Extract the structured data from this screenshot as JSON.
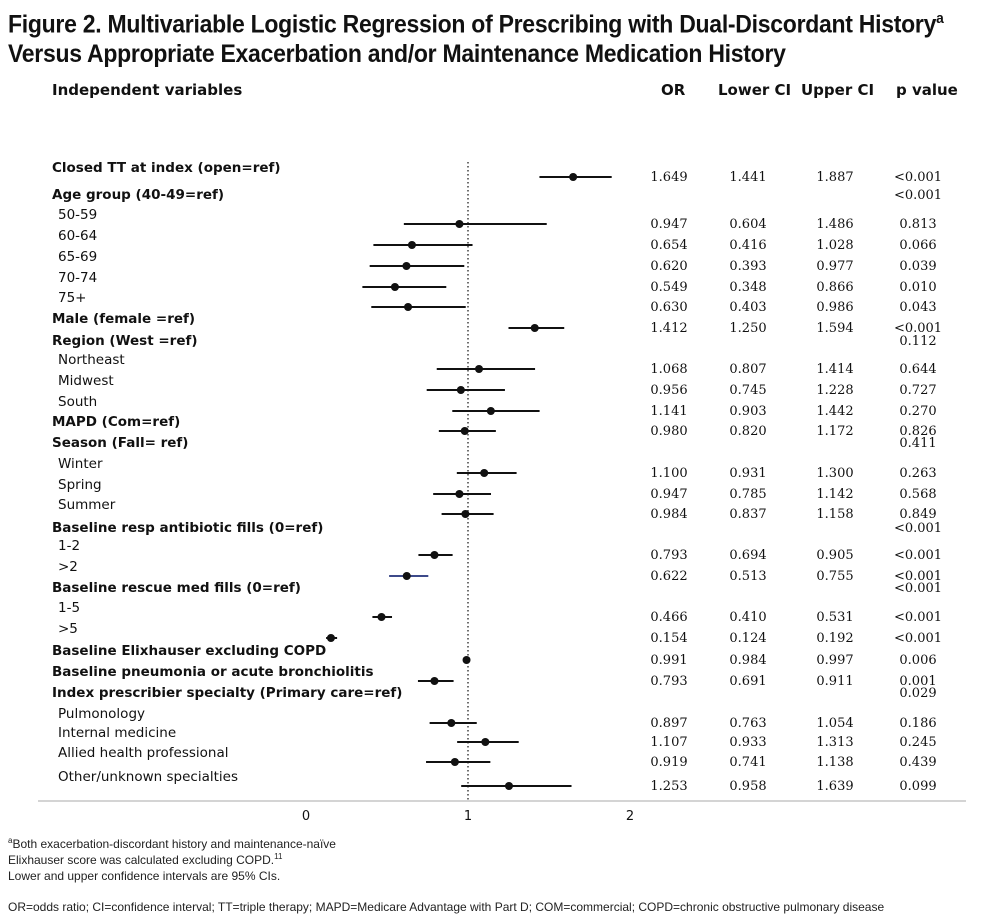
{
  "title": {
    "line1": "Figure 2. Multivariable Logistic Regression of Prescribing with Dual-Discordant History",
    "line1_sup": "a",
    "line2": "Versus Appropriate Exacerbation and/or Maintenance Medication History"
  },
  "headers": {
    "variables": "Independent variables",
    "or": "OR",
    "lower": "Lower CI",
    "upper": "Upper CI",
    "p": "p value"
  },
  "chart_data": {
    "type": "forest",
    "xlim": [
      0,
      2
    ],
    "ticks": [
      "0",
      "1",
      "2"
    ],
    "reference_line": 1,
    "rows": [
      {
        "label": "Closed TT at index (open=ref)",
        "bold": true,
        "or": 1.649,
        "lower": 1.441,
        "upper": 1.887,
        "or_text": "1.649",
        "lower_text": "1.441",
        "upper_text": "1.887",
        "p": "<0.001"
      },
      {
        "label": "Age  group (40-49=ref)",
        "bold": true,
        "p": "<0.001"
      },
      {
        "label": "50-59",
        "or": 0.947,
        "lower": 0.604,
        "upper": 1.486,
        "or_text": "0.947",
        "lower_text": "0.604",
        "upper_text": "1.486",
        "p": "0.813"
      },
      {
        "label": "60-64",
        "or": 0.654,
        "lower": 0.416,
        "upper": 1.028,
        "or_text": "0.654",
        "lower_text": "0.416",
        "upper_text": "1.028",
        "p": "0.066"
      },
      {
        "label": "65-69",
        "or": 0.62,
        "lower": 0.393,
        "upper": 0.977,
        "or_text": "0.620",
        "lower_text": "0.393",
        "upper_text": "0.977",
        "p": "0.039"
      },
      {
        "label": "70-74",
        "or": 0.549,
        "lower": 0.348,
        "upper": 0.866,
        "or_text": "0.549",
        "lower_text": "0.348",
        "upper_text": "0.866",
        "p": "0.010"
      },
      {
        "label": "75+",
        "or": 0.63,
        "lower": 0.403,
        "upper": 0.986,
        "or_text": "0.630",
        "lower_text": "0.403",
        "upper_text": "0.986",
        "p": "0.043"
      },
      {
        "label": "Male (female =ref)",
        "bold": true,
        "or": 1.412,
        "lower": 1.25,
        "upper": 1.594,
        "or_text": "1.412",
        "lower_text": "1.250",
        "upper_text": "1.594",
        "p": "<0.001"
      },
      {
        "label": "Region (West =ref)",
        "bold": true,
        "p": "0.112"
      },
      {
        "label": "Northeast",
        "or": 1.068,
        "lower": 0.807,
        "upper": 1.414,
        "or_text": "1.068",
        "lower_text": "0.807",
        "upper_text": "1.414",
        "p": "0.644"
      },
      {
        "label": "Midwest",
        "or": 0.956,
        "lower": 0.745,
        "upper": 1.228,
        "or_text": "0.956",
        "lower_text": "0.745",
        "upper_text": "1.228",
        "p": "0.727"
      },
      {
        "label": "South",
        "or": 1.141,
        "lower": 0.903,
        "upper": 1.442,
        "or_text": "1.141",
        "lower_text": "0.903",
        "upper_text": "1.442",
        "p": "0.270"
      },
      {
        "label": "MAPD (Com=ref)",
        "bold": true,
        "or": 0.98,
        "lower": 0.82,
        "upper": 1.172,
        "or_text": "0.980",
        "lower_text": "0.820",
        "upper_text": "1.172",
        "p": "0.826"
      },
      {
        "label": "Season (Fall= ref)",
        "bold": true,
        "p": "0.411"
      },
      {
        "label": "Winter",
        "or": 1.1,
        "lower": 0.931,
        "upper": 1.3,
        "or_text": "1.100",
        "lower_text": "0.931",
        "upper_text": "1.300",
        "p": "0.263"
      },
      {
        "label": "Spring",
        "or": 0.947,
        "lower": 0.785,
        "upper": 1.142,
        "or_text": "0.947",
        "lower_text": "0.785",
        "upper_text": "1.142",
        "p": "0.568"
      },
      {
        "label": "Summer",
        "or": 0.984,
        "lower": 0.837,
        "upper": 1.158,
        "or_text": "0.984",
        "lower_text": "0.837",
        "upper_text": "1.158",
        "p": "0.849"
      },
      {
        "label": "Baseline resp antibiotic fills (0=ref)",
        "bold": true,
        "p": "<0.001"
      },
      {
        "label": "1-2",
        "or": 0.793,
        "lower": 0.694,
        "upper": 0.905,
        "or_text": "0.793",
        "lower_text": "0.694",
        "upper_text": "0.905",
        "p": "<0.001"
      },
      {
        "label": ">2",
        "or": 0.622,
        "lower": 0.513,
        "upper": 0.755,
        "or_text": "0.622",
        "lower_text": "0.513",
        "upper_text": "0.755",
        "p": "<0.001"
      },
      {
        "label": "Baseline rescue med fills (0=ref)",
        "bold": true,
        "p": "<0.001"
      },
      {
        "label": "1-5",
        "or": 0.466,
        "lower": 0.41,
        "upper": 0.531,
        "or_text": "0.466",
        "lower_text": "0.410",
        "upper_text": "0.531",
        "p": "<0.001"
      },
      {
        "label": ">5",
        "or": 0.154,
        "lower": 0.124,
        "upper": 0.192,
        "or_text": "0.154",
        "lower_text": "0.124",
        "upper_text": "0.192",
        "p": "<0.001"
      },
      {
        "label": "Baseline Elixhauser excluding COPD",
        "bold": true,
        "or": 0.991,
        "lower": 0.984,
        "upper": 0.997,
        "or_text": "0.991",
        "lower_text": "0.984",
        "upper_text": "0.997",
        "p": "0.006"
      },
      {
        "label": "Baseline pneumonia or acute bronchiolitis",
        "bold": true,
        "or": 0.793,
        "lower": 0.691,
        "upper": 0.911,
        "or_text": "0.793",
        "lower_text": "0.691",
        "upper_text": "0.911",
        "p": "0.001"
      },
      {
        "label": "Index prescribier specialty (Primary care=ref)",
        "bold": true,
        "p": "0.029"
      },
      {
        "label": "Pulmonology",
        "or": 0.897,
        "lower": 0.763,
        "upper": 1.054,
        "or_text": "0.897",
        "lower_text": "0.763",
        "upper_text": "1.054",
        "p": "0.186"
      },
      {
        "label": "Internal medicine",
        "or": 1.107,
        "lower": 0.933,
        "upper": 1.313,
        "or_text": "1.107",
        "lower_text": "0.933",
        "upper_text": "1.313",
        "p": "0.245"
      },
      {
        "label": "Allied health professional",
        "or": 0.919,
        "lower": 0.741,
        "upper": 1.138,
        "or_text": "0.919",
        "lower_text": "0.741",
        "upper_text": "1.138",
        "p": "0.439"
      },
      {
        "label": "Other/unknown specialties",
        "or": 1.253,
        "lower": 0.958,
        "upper": 1.639,
        "or_text": "1.253",
        "lower_text": "0.958",
        "upper_text": "1.639",
        "p": "0.099"
      }
    ]
  },
  "footnotes": {
    "note_a_sup": "a",
    "note_a": "Both exacerbation-discordant history and maintenance-naïve",
    "note_elix": "Elixhauser score was calculated excluding COPD.",
    "note_elix_sup": "11",
    "note_ci": "Lower and upper confidence intervals are 95% CIs.",
    "abbreviations": "OR=odds ratio; CI=confidence interval; TT=triple therapy; MAPD=Medicare Advantage with Part D; COM=commercial; COPD=chronic obstructive pulmonary disease"
  }
}
